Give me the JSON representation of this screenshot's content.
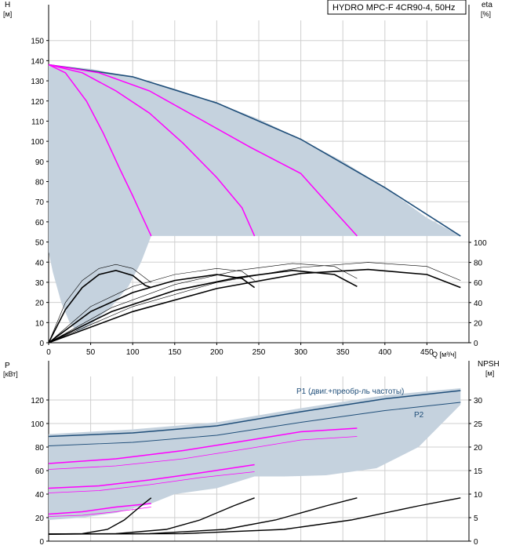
{
  "title": "HYDRO MPC-F 4CR90-4, 50Hz",
  "colors": {
    "envelope": "#c5d2de",
    "qh_max": "#1f4e79",
    "speed": "#ff00ff",
    "eta": "#000000",
    "power": "#1f4e79"
  },
  "chart_data": [
    {
      "type": "line",
      "name": "head-and-efficiency",
      "ylabel_left": "H",
      "ylabel_left_unit": "[м]",
      "ylabel_right": "eta",
      "ylabel_right_unit": "[%]",
      "xlabel": "Q [м³/ч]",
      "xlim": [
        0,
        500
      ],
      "ylim_left": [
        0,
        160
      ],
      "ylim_right": [
        0,
        100
      ],
      "x_ticks": [
        0,
        50,
        100,
        150,
        200,
        250,
        300,
        350,
        400,
        450
      ],
      "y_ticks_left": [
        0,
        10,
        20,
        30,
        40,
        50,
        60,
        70,
        80,
        90,
        100,
        110,
        120,
        130,
        140,
        150
      ],
      "y_ticks_right": [
        0,
        20,
        40,
        60,
        80,
        100
      ],
      "grid": true,
      "operating_area": {
        "upper": [
          [
            0,
            138
          ],
          [
            50,
            136
          ],
          [
            100,
            132
          ],
          [
            150,
            126
          ],
          [
            200,
            119
          ],
          [
            250,
            111
          ],
          [
            300,
            101
          ],
          [
            350,
            90
          ],
          [
            400,
            77
          ],
          [
            450,
            62
          ],
          [
            490,
            53
          ]
        ],
        "lower": [
          [
            490,
            53
          ],
          [
            122,
            53
          ],
          [
            110,
            40
          ],
          [
            95,
            28
          ],
          [
            75,
            18
          ],
          [
            50,
            9
          ],
          [
            35,
            5
          ],
          [
            25,
            10
          ],
          [
            15,
            20
          ],
          [
            5,
            35
          ],
          [
            0,
            45
          ]
        ]
      },
      "qh_curves": [
        {
          "n": 4,
          "points": [
            [
              0,
              138
            ],
            [
              100,
              132
            ],
            [
              200,
              119
            ],
            [
              300,
              101
            ],
            [
              400,
              77
            ],
            [
              490,
              53
            ]
          ]
        },
        {
          "n": 3,
          "points": [
            [
              0,
              138
            ],
            [
              60,
              134
            ],
            [
              120,
              125
            ],
            [
              180,
              111
            ],
            [
              240,
              97
            ],
            [
              300,
              84
            ],
            [
              330,
              70
            ],
            [
              367,
              53
            ]
          ]
        },
        {
          "n": 2,
          "points": [
            [
              0,
              138
            ],
            [
              40,
              134
            ],
            [
              80,
              125
            ],
            [
              120,
              114
            ],
            [
              160,
              99
            ],
            [
              200,
              82
            ],
            [
              230,
              67
            ],
            [
              245,
              53
            ]
          ]
        },
        {
          "n": 1,
          "points": [
            [
              0,
              138
            ],
            [
              20,
              134
            ],
            [
              45,
              120
            ],
            [
              65,
              104
            ],
            [
              85,
              86
            ],
            [
              100,
              73
            ],
            [
              112,
              62
            ],
            [
              122,
              53
            ]
          ]
        }
      ],
      "eta_curves": [
        {
          "n": 1,
          "points": [
            [
              0,
              0
            ],
            [
              20,
              33
            ],
            [
              40,
              55
            ],
            [
              60,
              68
            ],
            [
              80,
              72
            ],
            [
              100,
              67
            ],
            [
              115,
              57
            ],
            [
              122,
              55
            ]
          ]
        },
        {
          "n": 2,
          "points": [
            [
              0,
              0
            ],
            [
              50,
              31
            ],
            [
              100,
              50
            ],
            [
              150,
              62
            ],
            [
              200,
              68
            ],
            [
              230,
              64
            ],
            [
              245,
              55
            ]
          ]
        },
        {
          "n": 3,
          "points": [
            [
              0,
              0
            ],
            [
              75,
              31
            ],
            [
              150,
              52
            ],
            [
              225,
              65
            ],
            [
              290,
              72
            ],
            [
              340,
              68
            ],
            [
              367,
              56
            ]
          ]
        },
        {
          "n": 4,
          "points": [
            [
              0,
              0
            ],
            [
              100,
              31
            ],
            [
              200,
              54
            ],
            [
              300,
              69
            ],
            [
              380,
              73
            ],
            [
              450,
              68
            ],
            [
              490,
              55
            ]
          ]
        }
      ],
      "eta_envelope_curves": [
        {
          "n": 1,
          "points": [
            [
              0,
              0
            ],
            [
              20,
              40
            ],
            [
              40,
              62
            ],
            [
              60,
              74
            ],
            [
              80,
              78
            ],
            [
              100,
              74
            ],
            [
              122,
              60
            ]
          ]
        },
        {
          "n": 2,
          "points": [
            [
              0,
              0
            ],
            [
              50,
              36
            ],
            [
              100,
              56
            ],
            [
              150,
              68
            ],
            [
              200,
              74
            ],
            [
              230,
              71
            ],
            [
              245,
              62
            ]
          ]
        },
        {
          "n": 3,
          "points": [
            [
              0,
              0
            ],
            [
              75,
              35
            ],
            [
              150,
              58
            ],
            [
              225,
              72
            ],
            [
              290,
              79
            ],
            [
              340,
              76
            ],
            [
              367,
              64
            ]
          ]
        },
        {
          "n": 4,
          "points": [
            [
              0,
              0
            ],
            [
              100,
              36
            ],
            [
              200,
              60
            ],
            [
              300,
              75
            ],
            [
              380,
              80
            ],
            [
              450,
              76
            ],
            [
              490,
              62
            ]
          ]
        }
      ]
    },
    {
      "type": "line",
      "name": "power-and-npsh",
      "ylabel_left": "P",
      "ylabel_left_unit": "[кВт]",
      "ylabel_right": "NPSH",
      "ylabel_right_unit": "[м]",
      "xlim": [
        0,
        500
      ],
      "ylim_left": [
        0,
        140
      ],
      "ylim_right": [
        0,
        35
      ],
      "y_ticks_left": [
        0,
        20,
        40,
        60,
        80,
        100,
        120
      ],
      "y_ticks_right": [
        0,
        5,
        10,
        15,
        20,
        25,
        30
      ],
      "grid": true,
      "series": [
        {
          "name": "P1 (двиг.+преобр-ль частоты)",
          "label": "P1 (двиг.+преобр-ль частоты)",
          "points": [
            [
              0,
              89
            ],
            [
              100,
              92
            ],
            [
              200,
              98
            ],
            [
              300,
              110
            ],
            [
              400,
              121
            ],
            [
              490,
              128
            ]
          ]
        },
        {
          "name": "P2",
          "label": "P2",
          "points": [
            [
              0,
              81
            ],
            [
              100,
              84
            ],
            [
              200,
              90
            ],
            [
              300,
              101
            ],
            [
              400,
              111
            ],
            [
              490,
              118
            ]
          ]
        }
      ],
      "power_speed_curves": [
        {
          "n": 3,
          "points": [
            [
              0,
              66
            ],
            [
              80,
              70
            ],
            [
              160,
              77
            ],
            [
              240,
              86
            ],
            [
              300,
              93
            ],
            [
              367,
              96
            ]
          ]
        },
        {
          "n": 3,
          "points": [
            [
              0,
              61
            ],
            [
              80,
              64
            ],
            [
              160,
              70
            ],
            [
              240,
              79
            ],
            [
              300,
              86
            ],
            [
              367,
              89
            ]
          ]
        },
        {
          "n": 2,
          "points": [
            [
              0,
              45
            ],
            [
              60,
              47
            ],
            [
              120,
              52
            ],
            [
              180,
              58
            ],
            [
              245,
              65
            ]
          ]
        },
        {
          "n": 2,
          "points": [
            [
              0,
              41
            ],
            [
              60,
              43
            ],
            [
              120,
              48
            ],
            [
              180,
              54
            ],
            [
              245,
              59
            ]
          ]
        },
        {
          "n": 1,
          "points": [
            [
              0,
              23
            ],
            [
              40,
              25
            ],
            [
              80,
              29
            ],
            [
              122,
              32
            ]
          ]
        },
        {
          "n": 1,
          "points": [
            [
              0,
              21
            ],
            [
              40,
              22
            ],
            [
              80,
              25
            ],
            [
              122,
              29
            ]
          ]
        }
      ],
      "power_envelope": {
        "upper": [
          [
            0,
            91
          ],
          [
            100,
            95
          ],
          [
            200,
            101
          ],
          [
            300,
            113
          ],
          [
            400,
            124
          ],
          [
            490,
            130
          ]
        ],
        "lower": [
          [
            490,
            116
          ],
          [
            440,
            80
          ],
          [
            390,
            62
          ],
          [
            330,
            56
          ],
          [
            280,
            55
          ],
          [
            245,
            55
          ],
          [
            200,
            45
          ],
          [
            150,
            40
          ],
          [
            122,
            32
          ],
          [
            80,
            24
          ],
          [
            40,
            20
          ],
          [
            0,
            18
          ]
        ]
      },
      "npsh_curves": [
        {
          "n": 1,
          "points": [
            [
              0,
              1.5
            ],
            [
              40,
              1.6
            ],
            [
              70,
              2.5
            ],
            [
              90,
              4.5
            ],
            [
              110,
              7.5
            ],
            [
              122,
              9.2
            ]
          ]
        },
        {
          "n": 2,
          "points": [
            [
              0,
              1.5
            ],
            [
              80,
              1.6
            ],
            [
              140,
              2.5
            ],
            [
              180,
              4.5
            ],
            [
              220,
              7.5
            ],
            [
              245,
              9.2
            ]
          ]
        },
        {
          "n": 3,
          "points": [
            [
              0,
              1.5
            ],
            [
              120,
              1.6
            ],
            [
              210,
              2.5
            ],
            [
              270,
              4.5
            ],
            [
              330,
              7.5
            ],
            [
              367,
              9.2
            ]
          ]
        },
        {
          "n": 4,
          "points": [
            [
              0,
              1.5
            ],
            [
              160,
              1.6
            ],
            [
              280,
              2.5
            ],
            [
              360,
              4.5
            ],
            [
              440,
              7.5
            ],
            [
              490,
              9.2
            ]
          ]
        }
      ]
    }
  ]
}
